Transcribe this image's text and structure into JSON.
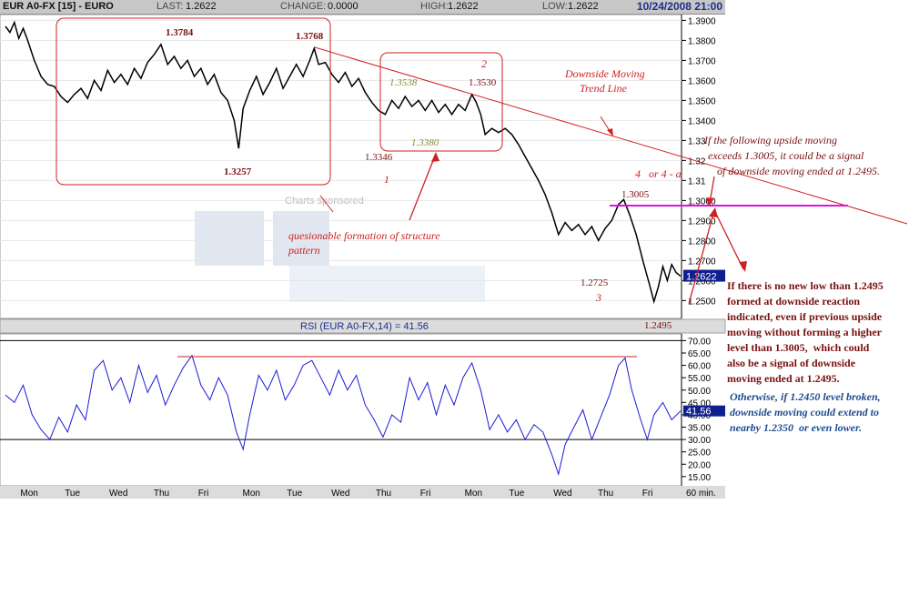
{
  "header": {
    "symbol": "EUR A0-FX [15] - EURO",
    "last_label": "LAST:",
    "last": "1.2622",
    "change_label": "CHANGE:",
    "change": "0.0000",
    "high_label": "HIGH:",
    "high": "1.2622",
    "low_label": "LOW:",
    "low": "1.2622",
    "datetime": "10/24/2008 21:00"
  },
  "watermark": {
    "sponsor": "Charts sponsored"
  },
  "colors": {
    "price": "#000000",
    "rsi": "#1a1ad6",
    "annot": "#cc2222",
    "magenta": "#e010e0",
    "brown": "#7a1010",
    "blue_note": "#1f4d8f",
    "olive": "#8a8a30",
    "accent_box": "#0f1f8f"
  },
  "chart_data": [
    {
      "type": "line",
      "id": "price",
      "ylim": [
        1.242,
        1.392
      ],
      "y_ticks": [
        "1.3900",
        "1.3800",
        "1.3700",
        "1.3600",
        "1.3500",
        "1.3400",
        "1.33",
        "1.32",
        "1.31",
        "1.3000",
        "1.2900",
        "1.2800",
        "1.2700",
        "1.2600",
        "1.2500"
      ],
      "y_tick_values": [
        1.39,
        1.38,
        1.37,
        1.36,
        1.35,
        1.34,
        1.33,
        1.32,
        1.31,
        1.3,
        1.29,
        1.28,
        1.27,
        1.26,
        1.25
      ],
      "last_value_label": "1.2622",
      "last_value": 1.2622,
      "x_day_labels": [
        "Mon",
        "Tue",
        "Wed",
        "Thu",
        "Fri",
        "Mon",
        "Tue",
        "Wed",
        "Thu",
        "Fri",
        "Mon",
        "Tue",
        "Wed",
        "Thu",
        "Fri"
      ],
      "x_unit": "60 min.",
      "series": [
        {
          "points": [
            [
              0,
              1.387
            ],
            [
              0.1,
              1.384
            ],
            [
              0.2,
              1.389
            ],
            [
              0.3,
              1.381
            ],
            [
              0.4,
              1.386
            ],
            [
              0.5,
              1.38
            ],
            [
              0.65,
              1.37
            ],
            [
              0.8,
              1.362
            ],
            [
              0.95,
              1.358
            ],
            [
              1.1,
              1.357
            ],
            [
              1.25,
              1.352
            ],
            [
              1.4,
              1.349
            ],
            [
              1.55,
              1.353
            ],
            [
              1.7,
              1.356
            ],
            [
              1.85,
              1.351
            ],
            [
              2.0,
              1.36
            ],
            [
              2.15,
              1.355
            ],
            [
              2.3,
              1.365
            ],
            [
              2.45,
              1.359
            ],
            [
              2.6,
              1.363
            ],
            [
              2.75,
              1.358
            ],
            [
              2.9,
              1.366
            ],
            [
              3.05,
              1.361
            ],
            [
              3.2,
              1.369
            ],
            [
              3.35,
              1.373
            ],
            [
              3.5,
              1.378
            ],
            [
              3.65,
              1.368
            ],
            [
              3.8,
              1.372
            ],
            [
              3.95,
              1.366
            ],
            [
              4.1,
              1.37
            ],
            [
              4.25,
              1.362
            ],
            [
              4.4,
              1.366
            ],
            [
              4.55,
              1.358
            ],
            [
              4.7,
              1.363
            ],
            [
              4.85,
              1.354
            ],
            [
              5.0,
              1.35
            ],
            [
              5.15,
              1.34
            ],
            [
              5.25,
              1.326
            ],
            [
              5.35,
              1.346
            ],
            [
              5.5,
              1.355
            ],
            [
              5.65,
              1.362
            ],
            [
              5.8,
              1.353
            ],
            [
              5.95,
              1.359
            ],
            [
              6.1,
              1.366
            ],
            [
              6.25,
              1.356
            ],
            [
              6.4,
              1.362
            ],
            [
              6.55,
              1.368
            ],
            [
              6.7,
              1.362
            ],
            [
              6.85,
              1.37
            ],
            [
              6.95,
              1.376
            ],
            [
              7.05,
              1.368
            ],
            [
              7.2,
              1.369
            ],
            [
              7.35,
              1.363
            ],
            [
              7.5,
              1.359
            ],
            [
              7.65,
              1.364
            ],
            [
              7.8,
              1.357
            ],
            [
              7.95,
              1.361
            ],
            [
              8.1,
              1.354
            ],
            [
              8.25,
              1.349
            ],
            [
              8.4,
              1.345
            ],
            [
              8.55,
              1.343
            ],
            [
              8.7,
              1.35
            ],
            [
              8.85,
              1.346
            ],
            [
              9.0,
              1.352
            ],
            [
              9.15,
              1.347
            ],
            [
              9.3,
              1.35
            ],
            [
              9.45,
              1.345
            ],
            [
              9.6,
              1.35
            ],
            [
              9.75,
              1.344
            ],
            [
              9.9,
              1.348
            ],
            [
              10.05,
              1.343
            ],
            [
              10.2,
              1.348
            ],
            [
              10.35,
              1.345
            ],
            [
              10.5,
              1.353
            ],
            [
              10.6,
              1.349
            ],
            [
              10.7,
              1.343
            ],
            [
              10.8,
              1.333
            ],
            [
              10.95,
              1.336
            ],
            [
              11.1,
              1.334
            ],
            [
              11.25,
              1.336
            ],
            [
              11.4,
              1.333
            ],
            [
              11.55,
              1.328
            ],
            [
              11.7,
              1.322
            ],
            [
              11.85,
              1.316
            ],
            [
              12.0,
              1.31
            ],
            [
              12.15,
              1.303
            ],
            [
              12.3,
              1.294
            ],
            [
              12.45,
              1.283
            ],
            [
              12.6,
              1.289
            ],
            [
              12.75,
              1.285
            ],
            [
              12.9,
              1.288
            ],
            [
              13.05,
              1.283
            ],
            [
              13.2,
              1.287
            ],
            [
              13.35,
              1.28
            ],
            [
              13.5,
              1.286
            ],
            [
              13.65,
              1.29
            ],
            [
              13.8,
              1.298
            ],
            [
              13.92,
              1.3005
            ],
            [
              14.05,
              1.293
            ],
            [
              14.2,
              1.283
            ],
            [
              14.35,
              1.27
            ],
            [
              14.5,
              1.258
            ],
            [
              14.6,
              1.2495
            ],
            [
              14.7,
              1.257
            ],
            [
              14.8,
              1.267
            ],
            [
              14.9,
              1.26
            ],
            [
              15.0,
              1.268
            ],
            [
              15.1,
              1.264
            ],
            [
              15.2,
              1.2622
            ]
          ]
        }
      ]
    },
    {
      "type": "line",
      "id": "rsi",
      "title": "RSI (EUR A0-FX,14) = 41.56",
      "ylim": [
        12,
        72
      ],
      "y_ticks": [
        "70.00",
        "65.00",
        "60.00",
        "55.00",
        "50.00",
        "45.00",
        "40.00",
        "35.00",
        "30.00",
        "25.00",
        "20.00",
        "15.00"
      ],
      "y_tick_values": [
        70,
        65,
        60,
        55,
        50,
        45,
        40,
        35,
        30,
        25,
        20,
        15
      ],
      "last_value_label": "41.56",
      "last_value": 41.56,
      "horizontal_lines": [
        70,
        30
      ],
      "series": [
        {
          "points": [
            [
              0,
              48
            ],
            [
              0.2,
              45
            ],
            [
              0.4,
              52
            ],
            [
              0.6,
              40
            ],
            [
              0.8,
              34
            ],
            [
              1.0,
              30
            ],
            [
              1.2,
              39
            ],
            [
              1.4,
              33
            ],
            [
              1.6,
              44
            ],
            [
              1.8,
              38
            ],
            [
              2.0,
              58
            ],
            [
              2.2,
              62
            ],
            [
              2.4,
              50
            ],
            [
              2.6,
              55
            ],
            [
              2.8,
              45
            ],
            [
              3.0,
              60
            ],
            [
              3.2,
              49
            ],
            [
              3.4,
              56
            ],
            [
              3.6,
              44
            ],
            [
              3.8,
              52
            ],
            [
              4.0,
              59
            ],
            [
              4.2,
              64
            ],
            [
              4.4,
              52
            ],
            [
              4.6,
              46
            ],
            [
              4.8,
              55
            ],
            [
              5.0,
              48
            ],
            [
              5.2,
              33
            ],
            [
              5.35,
              26
            ],
            [
              5.5,
              40
            ],
            [
              5.7,
              56
            ],
            [
              5.9,
              50
            ],
            [
              6.1,
              58
            ],
            [
              6.3,
              46
            ],
            [
              6.5,
              52
            ],
            [
              6.7,
              60
            ],
            [
              6.9,
              62
            ],
            [
              7.1,
              55
            ],
            [
              7.3,
              48
            ],
            [
              7.5,
              58
            ],
            [
              7.7,
              50
            ],
            [
              7.9,
              56
            ],
            [
              8.1,
              44
            ],
            [
              8.3,
              38
            ],
            [
              8.5,
              31
            ],
            [
              8.7,
              40
            ],
            [
              8.9,
              37
            ],
            [
              9.1,
              55
            ],
            [
              9.3,
              46
            ],
            [
              9.5,
              53
            ],
            [
              9.7,
              40
            ],
            [
              9.9,
              52
            ],
            [
              10.1,
              44
            ],
            [
              10.3,
              55
            ],
            [
              10.5,
              61
            ],
            [
              10.7,
              50
            ],
            [
              10.9,
              34
            ],
            [
              11.1,
              40
            ],
            [
              11.3,
              33
            ],
            [
              11.5,
              38
            ],
            [
              11.7,
              30
            ],
            [
              11.9,
              36
            ],
            [
              12.1,
              33
            ],
            [
              12.3,
              24
            ],
            [
              12.45,
              16
            ],
            [
              12.6,
              28
            ],
            [
              12.8,
              35
            ],
            [
              13.0,
              42
            ],
            [
              13.2,
              30
            ],
            [
              13.4,
              39
            ],
            [
              13.6,
              48
            ],
            [
              13.8,
              60
            ],
            [
              13.95,
              63
            ],
            [
              14.1,
              50
            ],
            [
              14.3,
              38
            ],
            [
              14.45,
              30
            ],
            [
              14.6,
              40
            ],
            [
              14.8,
              45
            ],
            [
              15.0,
              38
            ],
            [
              15.2,
              41.56
            ]
          ]
        }
      ]
    }
  ],
  "annotations": {
    "peak_1": "1.3784",
    "peak_2": "1.3768",
    "low_1": "1.3257",
    "box2_high_a": "1.3538",
    "box2_high_b": "1.3530",
    "box2_low": "1.3380",
    "low_2": "1.3346",
    "wave_1": "1",
    "wave_2": "2",
    "wave_3": "3",
    "wave_4": "4   or 4 - a",
    "level_1_3005": "1.3005",
    "low_1_2725": "1.2725",
    "low_1_2495": "1.2495",
    "trend_line_label_1": "Downside Moving",
    "trend_line_label_2": "Trend Line",
    "structure_label_1": "quesionable formation of structure",
    "structure_label_2": "pattern",
    "note_upper": [
      "If the following upside moving",
      "exceeds 1.3005, it could be a signal",
      "of downside moving ended at 1.2495."
    ],
    "note_middle": [
      "If there is no new low than 1.2495",
      "formed at downside reaction",
      "indicated, even if previous upside",
      "moving without forming a higher",
      "level than 1.3005,  which could",
      "also be a signal of downside",
      "moving ended at 1.2495."
    ],
    "note_lower": [
      "Otherwise, if 1.2450 level broken,",
      "downside moving could extend to",
      "nearby 1.2350  or even lower."
    ]
  }
}
